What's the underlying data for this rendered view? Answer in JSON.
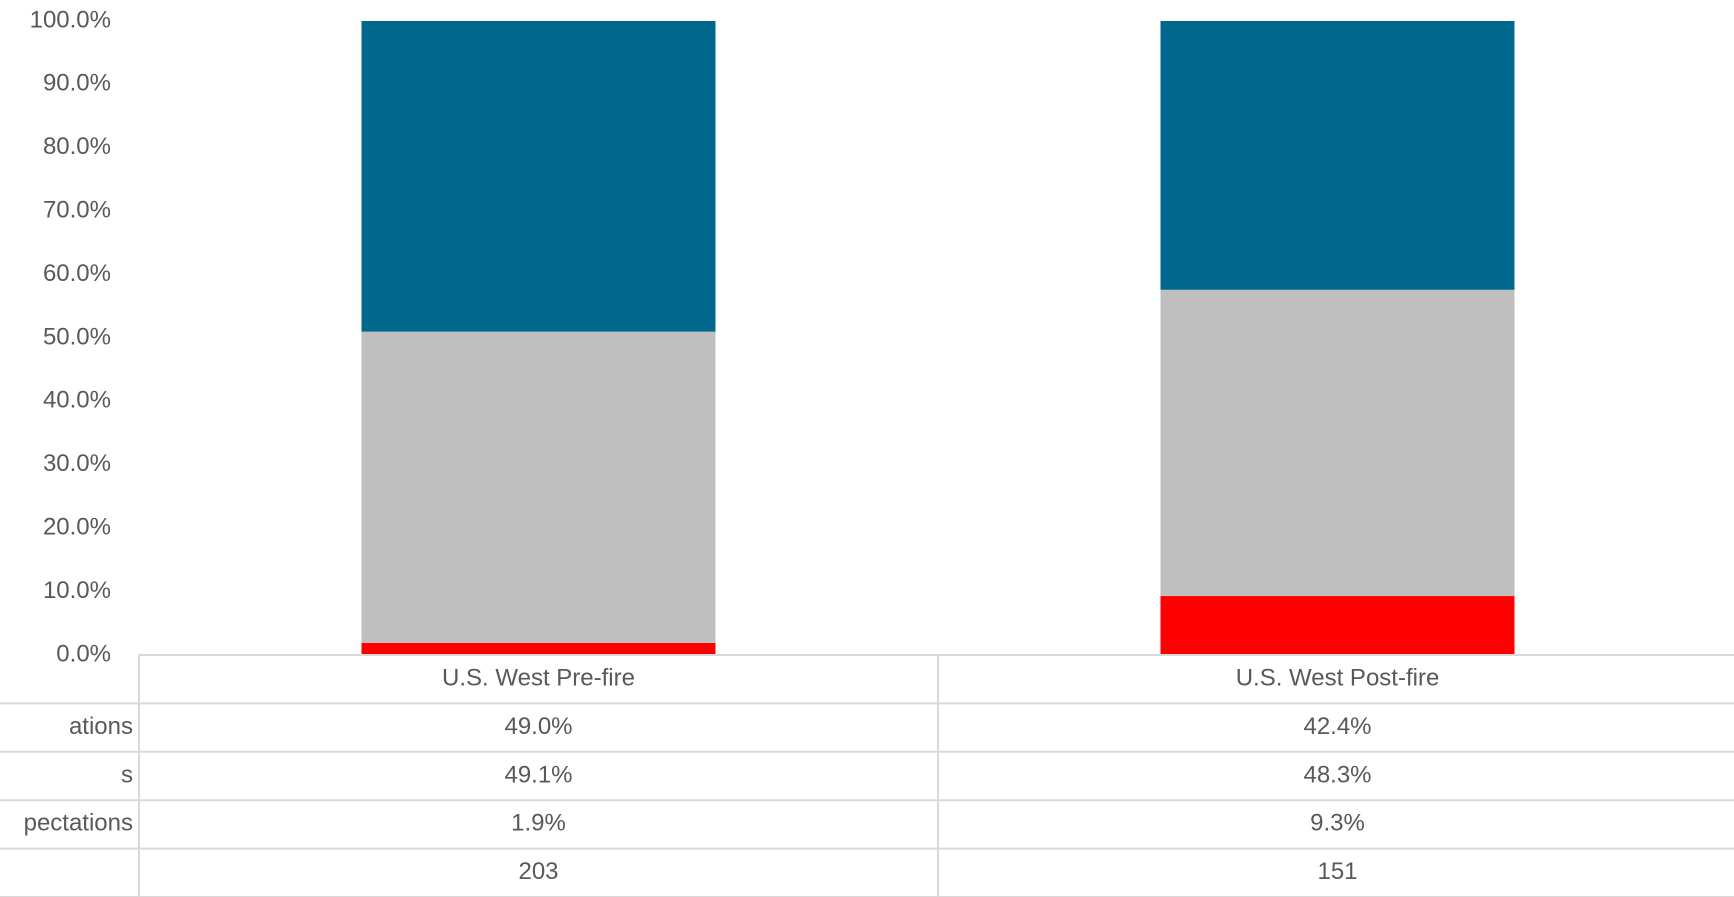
{
  "chart_data": {
    "type": "stacked_bar",
    "categories": [
      "U.S. West Pre-fire",
      "U.S. West Post-fire"
    ],
    "series": [
      {
        "name": "pectations",
        "color": "#ff0000",
        "values": [
          1.9,
          9.3
        ],
        "value_labels": [
          "1.9%",
          "9.3%"
        ]
      },
      {
        "name": "s",
        "color": "#bfbfbf",
        "values": [
          49.1,
          48.3
        ],
        "value_labels": [
          "49.1%",
          "48.3%"
        ]
      },
      {
        "name": "ations",
        "color": "#00688c",
        "values": [
          49.0,
          42.4
        ],
        "value_labels": [
          "49.0%",
          "42.4%"
        ]
      }
    ],
    "extra_row": {
      "name": null,
      "values": [
        203,
        151
      ]
    },
    "ylim": [
      0,
      100
    ],
    "yticks": [
      {
        "value": 0,
        "label": "0.0%"
      },
      {
        "value": 10,
        "label": "10.0%"
      },
      {
        "value": 20,
        "label": "20.0%"
      },
      {
        "value": 30,
        "label": "30.0%"
      },
      {
        "value": 40,
        "label": "40.0%"
      },
      {
        "value": 50,
        "label": "50.0%"
      },
      {
        "value": 60,
        "label": "60.0%"
      },
      {
        "value": 70,
        "label": "70.0%"
      },
      {
        "value": 80,
        "label": "80.0%"
      },
      {
        "value": 90,
        "label": "90.0%"
      },
      {
        "value": 100,
        "label": "100.0%"
      }
    ],
    "grid": false
  }
}
